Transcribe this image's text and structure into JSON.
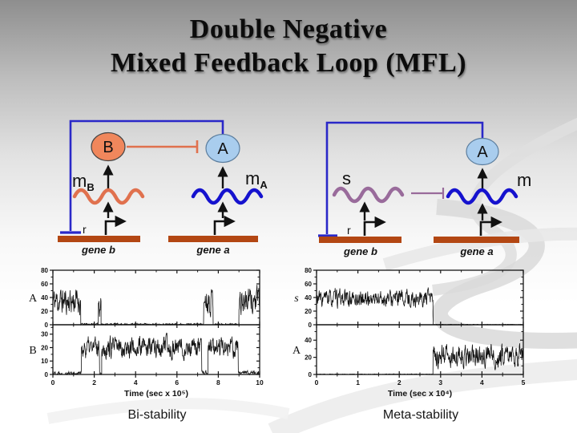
{
  "title": {
    "line1": "Double Negative",
    "line2": "Mixed Feedback Loop (MFL)"
  },
  "diagram_left": {
    "protein_b": "B",
    "protein_a": "A",
    "mrna_b": {
      "main": "m",
      "sub": "B"
    },
    "mrna_a": {
      "main": "m",
      "sub": "A"
    },
    "r_label": "r",
    "gene_b_label": "gene b",
    "gene_a_label": "gene a"
  },
  "diagram_right": {
    "protein_a": "A",
    "srna_label": "s",
    "mrna_label": "m",
    "r_label": "r",
    "gene_b_label": "gene b",
    "gene_a_label": "gene a"
  },
  "colors": {
    "protein_b_fill": "#F0875C",
    "protein_a_fill": "#A9CDEE",
    "mrna_b_wave": "#E0714E",
    "mrna_a_wave": "#1512CE",
    "srna_wave": "#996B9B",
    "repression_b_to_a": "#E0714E",
    "repression_s_to_m": "#996B9B",
    "feedback_loop": "#2A28C8",
    "gene_bar": "#B34713",
    "trace": "#131313"
  },
  "chart_data": [
    {
      "type": "line",
      "title": "Bi-stability",
      "xlabel": "Time (sec x 10⁵)",
      "x_range": [
        0,
        10
      ],
      "x_ticks": [
        0,
        2,
        4,
        6,
        8,
        10
      ],
      "legend": "none",
      "grid": false,
      "panels": [
        {
          "ylabel": "A",
          "italic": false,
          "ylim": [
            0,
            80
          ],
          "yticks": [
            0,
            20,
            40,
            60,
            80
          ],
          "seed": 11,
          "segments": [
            {
              "x": [
                0,
                1.35
              ],
              "mean": 35,
              "amp": 18
            },
            {
              "x": [
                1.35,
                2.2
              ],
              "mean": 0.8,
              "amp": 1.2
            },
            {
              "x": [
                2.2,
                2.33
              ],
              "mean": 36,
              "amp": 20
            },
            {
              "x": [
                2.33,
                7.3
              ],
              "mean": 0.8,
              "amp": 1.2
            },
            {
              "x": [
                7.3,
                7.75
              ],
              "mean": 38,
              "amp": 17
            },
            {
              "x": [
                7.75,
                9.0
              ],
              "mean": 0.8,
              "amp": 1.2
            },
            {
              "x": [
                9.0,
                10
              ],
              "mean": 35,
              "amp": 17
            }
          ]
        },
        {
          "ylabel": "B",
          "italic": false,
          "ylim": [
            0,
            37
          ],
          "yticks": [
            0,
            10,
            20,
            30
          ],
          "seed": 22,
          "segments": [
            {
              "x": [
                0,
                1.38
              ],
              "mean": 1,
              "amp": 1.5
            },
            {
              "x": [
                1.38,
                2.26
              ],
              "mean": 20,
              "amp": 7
            },
            {
              "x": [
                2.26,
                2.36
              ],
              "mean": 0.8,
              "amp": 1
            },
            {
              "x": [
                2.36,
                7.2
              ],
              "mean": 20,
              "amp": 7
            },
            {
              "x": [
                7.2,
                7.5
              ],
              "mean": 1.2,
              "amp": 1.5
            },
            {
              "x": [
                7.5,
                8.97
              ],
              "mean": 20,
              "amp": 7
            },
            {
              "x": [
                8.97,
                10
              ],
              "mean": 1,
              "amp": 1.5
            }
          ]
        }
      ]
    },
    {
      "type": "line",
      "title": "Meta-stability",
      "xlabel": "Time (sec x 10⁴)",
      "x_range": [
        0,
        5
      ],
      "x_ticks": [
        0,
        1,
        2,
        3,
        4,
        5
      ],
      "legend": "none",
      "grid": false,
      "panels": [
        {
          "ylabel": "s",
          "italic": true,
          "ylim": [
            0,
            80
          ],
          "yticks": [
            0,
            20,
            40,
            60,
            80
          ],
          "seed": 33,
          "segments": [
            {
              "x": [
                0,
                2.82
              ],
              "mean": 38,
              "amp": 11
            },
            {
              "x": [
                2.82,
                5
              ],
              "mean": 0.2,
              "amp": 0.4
            }
          ]
        },
        {
          "ylabel": "A",
          "italic": false,
          "ylim": [
            0,
            58
          ],
          "yticks": [
            0,
            20,
            40
          ],
          "seed": 44,
          "segments": [
            {
              "x": [
                0,
                2.82
              ],
              "mean": 0.2,
              "amp": 0.4
            },
            {
              "x": [
                2.82,
                5
              ],
              "mean": 22,
              "amp": 11
            }
          ]
        }
      ]
    }
  ]
}
